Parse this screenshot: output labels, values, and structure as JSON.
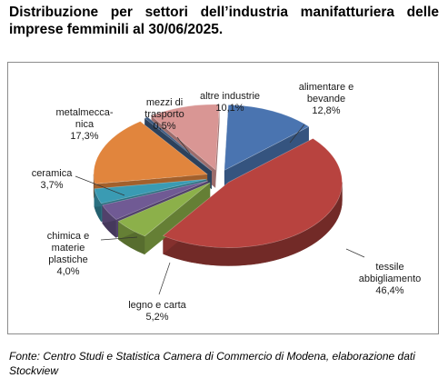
{
  "title": "Distribuzione per settori dell’industria manifatturiera delle imprese femminili al 30/06/2025.",
  "footer": "Fonte: Centro Studi e Statistica Camera di Commercio di Modena, elaborazione dati Stockview",
  "chart_data": {
    "type": "pie",
    "title": "Distribuzione per settori dell’industria manifatturiera delle imprese femminili al 30/06/2025.",
    "slices": [
      {
        "label": "alimentare e bevande",
        "value": 12.8,
        "value_label": "12,8%",
        "color": "#4a74b0"
      },
      {
        "label": "tessile abbigliamento",
        "value": 46.4,
        "value_label": "46,4%",
        "color": "#b8433f"
      },
      {
        "label": "legno e carta",
        "value": 5.2,
        "value_label": "5,2%",
        "color": "#8cb04a"
      },
      {
        "label": "chimica e materie plastiche",
        "value": 4.0,
        "value_label": "4,0%",
        "color": "#705a94"
      },
      {
        "label": "ceramica",
        "value": 3.7,
        "value_label": "3,7%",
        "color": "#3a9bb3"
      },
      {
        "label": "metalmeccanica",
        "value": 17.3,
        "value_label": "17,3%",
        "color": "#e1853d"
      },
      {
        "label": "mezzi di trasporto",
        "value": 0.5,
        "value_label": "0,5%",
        "color": "#3d5a80"
      },
      {
        "label": "altre industrie",
        "value": 10.1,
        "value_label": "10,1%",
        "color": "#d99694"
      }
    ],
    "exploded": true,
    "three_d": true,
    "legend": "none",
    "data_labels": "outside with leader lines"
  }
}
